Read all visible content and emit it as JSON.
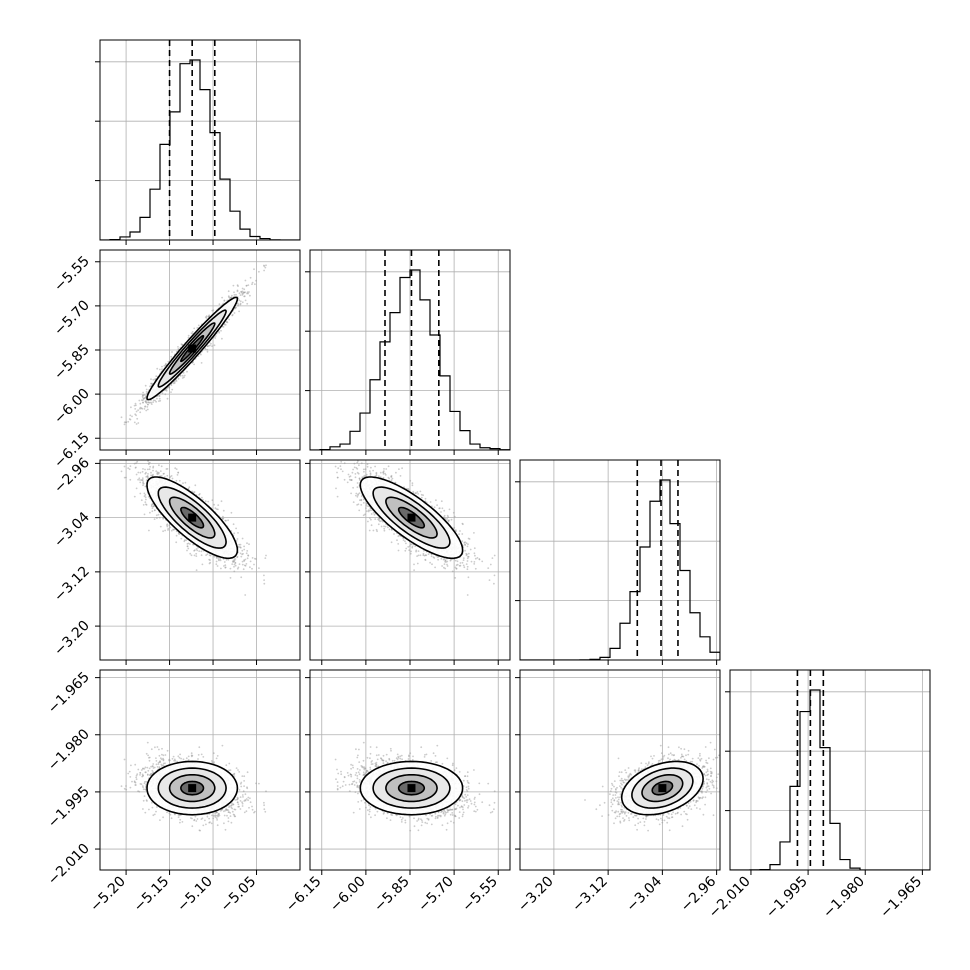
{
  "chart_data": {
    "type": "corner",
    "title": "",
    "grid": true,
    "params": [
      {
        "range": [
          -5.23,
          -5.0
        ],
        "ticks": [
          -5.2,
          -5.15,
          -5.1,
          -5.05
        ],
        "tick_labels": [
          "−5.20",
          "−5.15",
          "−5.10",
          "−5.05"
        ],
        "mean": -5.124,
        "std": 0.026,
        "quantiles": [
          -5.15,
          -5.124,
          -5.098
        ]
      },
      {
        "range": [
          -6.19,
          -5.51
        ],
        "ticks": [
          -6.15,
          -6.0,
          -5.85,
          -5.7,
          -5.55
        ],
        "tick_labels": [
          "−6.15",
          "−6.00",
          "−5.85",
          "−5.70",
          "−5.55"
        ],
        "mean": -5.845,
        "std": 0.087,
        "quantiles": [
          -5.935,
          -5.845,
          -5.752
        ]
      },
      {
        "range": [
          -3.25,
          -2.955
        ],
        "ticks": [
          -3.2,
          -3.12,
          -3.04,
          -2.96
        ],
        "tick_labels": [
          "−3.20",
          "−3.12",
          "−3.04",
          "−2.96"
        ],
        "mean": -3.04,
        "std": 0.03,
        "quantiles": [
          -3.077,
          -3.042,
          -3.017
        ]
      },
      {
        "range": [
          -2.0155,
          -1.963
        ],
        "ticks": [
          -2.01,
          -1.995,
          -1.98,
          -1.965
        ],
        "tick_labels": [
          "−2.010",
          "−1.995",
          "−1.980",
          "−1.965"
        ],
        "mean": -1.994,
        "std": 0.0035,
        "quantiles": [
          -1.9978,
          -1.9944,
          -1.991
        ]
      }
    ],
    "correlations": [
      {
        "pair": [
          0,
          1
        ],
        "rho": 0.97
      },
      {
        "pair": [
          0,
          2
        ],
        "rho": -0.8
      },
      {
        "pair": [
          1,
          2
        ],
        "rho": -0.8
      },
      {
        "pair": [
          0,
          3
        ],
        "rho": 0.0
      },
      {
        "pair": [
          1,
          3
        ],
        "rho": 0.0
      },
      {
        "pair": [
          2,
          3
        ],
        "rho": 0.35
      }
    ],
    "histogram_bins": 20,
    "contour_levels_sigma": [
      0.5,
      1.0,
      1.5,
      2.0
    ],
    "colors": {
      "hist": "#000000",
      "points": "#9a9a9a",
      "contour": "#000000",
      "grid": "#b0b0b0"
    }
  }
}
